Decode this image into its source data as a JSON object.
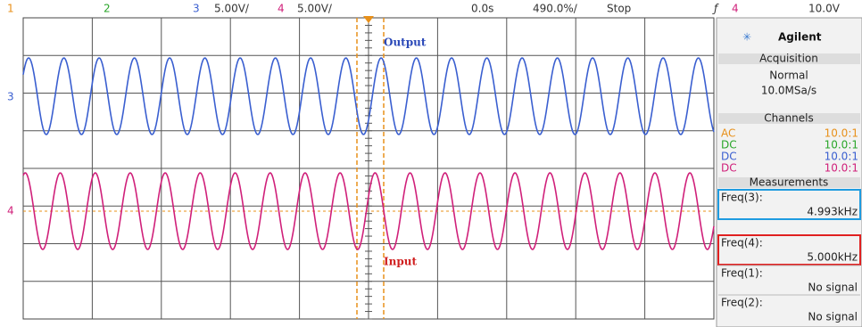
{
  "top_bar": {
    "ch1": "1",
    "ch2": "2",
    "ch3": "3",
    "ch3_scale": "5.00V/",
    "ch4": "4",
    "ch4_scale": "5.00V/",
    "time_offset": "0.0s",
    "time_scale": "490.0%/",
    "status": "Stop",
    "trigger_channel": "4",
    "trigger_level": "10.0V"
  },
  "screen": {
    "output_label": "Output",
    "input_label": "Input",
    "marker_3": "3",
    "marker_4": "4"
  },
  "panel": {
    "brand": "Agilent",
    "acquisition": {
      "title": "Acquisition",
      "mode": "Normal",
      "rate": "10.0MSa/s"
    },
    "channels": {
      "title": "Channels",
      "rows": [
        [
          "AC",
          "10.0:1"
        ],
        [
          "DC",
          "10.0:1"
        ],
        [
          "DC",
          "10.0:1"
        ],
        [
          "DC",
          "10.0:1"
        ]
      ]
    },
    "measurements": {
      "title": "Measurements",
      "items": [
        {
          "label": "Freq(3):",
          "value": "4.993kHz"
        },
        {
          "label": "Freq(4):",
          "value": "5.000kHz"
        },
        {
          "label": "Freq(1):",
          "value": "No signal"
        },
        {
          "label": "Freq(2):",
          "value": "No signal"
        }
      ]
    }
  }
}
